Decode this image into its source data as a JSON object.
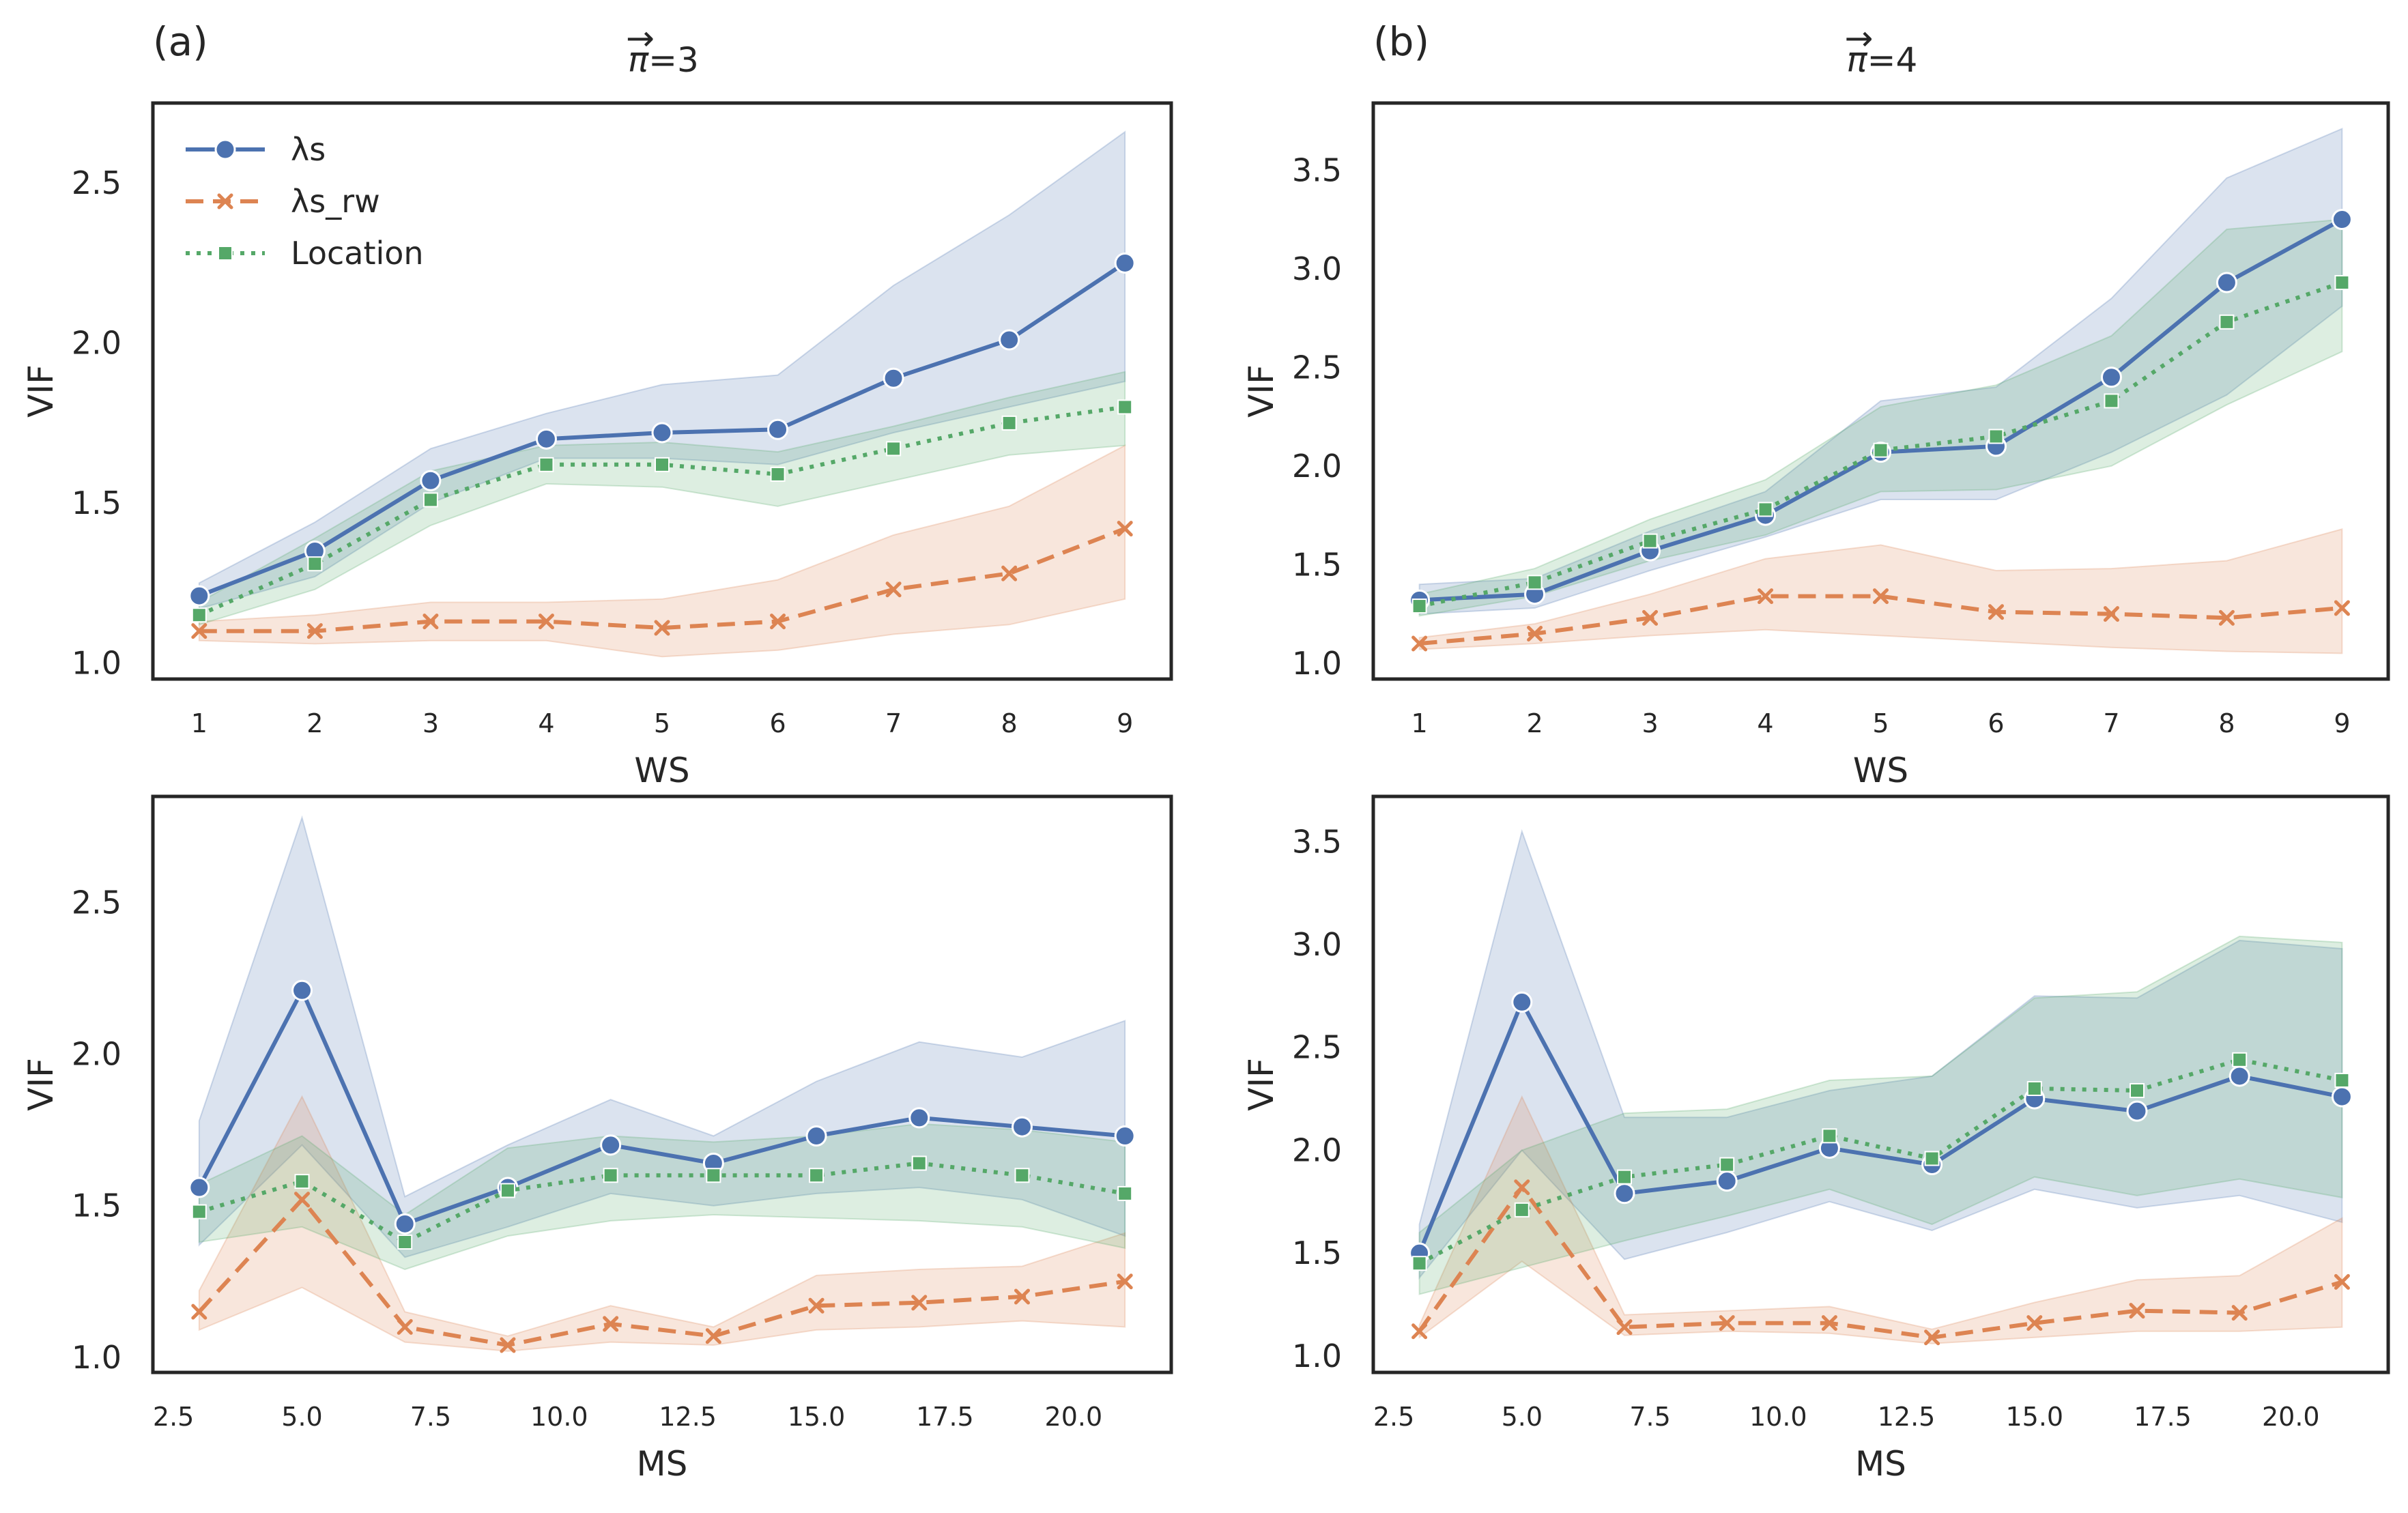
{
  "colors": {
    "ls": "#4c72b0",
    "ls_rw": "#dd8452",
    "loc": "#55a868",
    "frame": "#262626"
  },
  "legend": [
    "λs",
    "λs_rw",
    "Location"
  ],
  "chart_data": [
    {
      "type": "line",
      "panel_label": "(a)",
      "title_arrow": "→",
      "title_symbol": "π",
      "title_rest": "=3",
      "xlabel": "WS",
      "ylabel": "VIF",
      "x": [
        1,
        2,
        3,
        4,
        5,
        6,
        7,
        8,
        9
      ],
      "xticks": [
        "1",
        "2",
        "3",
        "4",
        "5",
        "6",
        "7",
        "8",
        "9"
      ],
      "xlim": [
        0.6,
        9.4
      ],
      "yticks": [
        "1.0",
        "1.5",
        "2.0",
        "2.5"
      ],
      "ylim": [
        0.95,
        2.75
      ],
      "series": [
        {
          "name": "λs",
          "values": [
            1.21,
            1.35,
            1.57,
            1.7,
            1.72,
            1.73,
            1.89,
            2.01,
            2.25
          ],
          "lower": [
            1.17,
            1.27,
            1.5,
            1.64,
            1.64,
            1.62,
            1.72,
            1.8,
            1.88
          ],
          "upper": [
            1.25,
            1.44,
            1.67,
            1.78,
            1.87,
            1.9,
            2.18,
            2.4,
            2.66
          ]
        },
        {
          "name": "λs_rw",
          "values": [
            1.1,
            1.1,
            1.13,
            1.13,
            1.11,
            1.13,
            1.23,
            1.28,
            1.42
          ],
          "lower": [
            1.07,
            1.06,
            1.07,
            1.07,
            1.02,
            1.04,
            1.09,
            1.12,
            1.2
          ],
          "upper": [
            1.13,
            1.15,
            1.19,
            1.19,
            1.2,
            1.26,
            1.4,
            1.49,
            1.68
          ]
        },
        {
          "name": "Location",
          "values": [
            1.15,
            1.31,
            1.51,
            1.62,
            1.62,
            1.59,
            1.67,
            1.75,
            1.8
          ],
          "lower": [
            1.12,
            1.23,
            1.43,
            1.56,
            1.55,
            1.49,
            1.57,
            1.65,
            1.68
          ],
          "upper": [
            1.19,
            1.39,
            1.6,
            1.68,
            1.69,
            1.66,
            1.74,
            1.83,
            1.91
          ]
        }
      ]
    },
    {
      "type": "line",
      "panel_label": "(b)",
      "title_arrow": "→",
      "title_symbol": "π",
      "title_rest": "=4",
      "xlabel": "WS",
      "ylabel": "VIF",
      "x": [
        1,
        2,
        3,
        4,
        5,
        6,
        7,
        8,
        9
      ],
      "xticks": [
        "1",
        "2",
        "3",
        "4",
        "5",
        "6",
        "7",
        "8",
        "9"
      ],
      "xlim": [
        0.6,
        9.4
      ],
      "yticks": [
        "1.0",
        "1.5",
        "2.0",
        "2.5",
        "3.0",
        "3.5"
      ],
      "ylim": [
        0.92,
        3.84
      ],
      "series": [
        {
          "name": "λs",
          "values": [
            1.32,
            1.35,
            1.57,
            1.75,
            2.07,
            2.1,
            2.45,
            2.93,
            3.25
          ],
          "lower": [
            1.25,
            1.28,
            1.47,
            1.64,
            1.83,
            1.83,
            2.07,
            2.36,
            2.81
          ],
          "upper": [
            1.4,
            1.43,
            1.67,
            1.87,
            2.33,
            2.4,
            2.85,
            3.46,
            3.71
          ]
        },
        {
          "name": "λs_rw",
          "values": [
            1.1,
            1.15,
            1.23,
            1.34,
            1.34,
            1.26,
            1.25,
            1.23,
            1.28
          ],
          "lower": [
            1.07,
            1.1,
            1.14,
            1.17,
            1.14,
            1.11,
            1.08,
            1.06,
            1.05
          ],
          "upper": [
            1.13,
            1.2,
            1.35,
            1.53,
            1.6,
            1.47,
            1.48,
            1.52,
            1.68
          ]
        },
        {
          "name": "Location",
          "values": [
            1.29,
            1.41,
            1.62,
            1.78,
            2.08,
            2.15,
            2.33,
            2.73,
            2.93
          ],
          "lower": [
            1.24,
            1.34,
            1.52,
            1.65,
            1.87,
            1.88,
            2.0,
            2.31,
            2.58
          ],
          "upper": [
            1.35,
            1.48,
            1.73,
            1.93,
            2.3,
            2.41,
            2.66,
            3.2,
            3.25
          ]
        }
      ]
    },
    {
      "type": "line",
      "panel_label": "",
      "xlabel": "MS",
      "ylabel": "VIF",
      "x": [
        3,
        5,
        7,
        9,
        11,
        13,
        15,
        17,
        19,
        21
      ],
      "xticks": [
        "2.5",
        "5.0",
        "7.5",
        "10.0",
        "12.5",
        "15.0",
        "17.5",
        "20.0"
      ],
      "xtick_values": [
        2.5,
        5.0,
        7.5,
        10.0,
        12.5,
        15.0,
        17.5,
        20.0
      ],
      "xlim": [
        2.1,
        21.9
      ],
      "yticks": [
        "1.0",
        "1.5",
        "2.0",
        "2.5"
      ],
      "ylim": [
        0.95,
        2.85
      ],
      "series": [
        {
          "name": "λs",
          "values": [
            1.56,
            2.21,
            1.44,
            1.56,
            1.7,
            1.64,
            1.73,
            1.79,
            1.76,
            1.73
          ],
          "lower": [
            1.37,
            1.7,
            1.33,
            1.43,
            1.54,
            1.5,
            1.54,
            1.56,
            1.52,
            1.4
          ],
          "upper": [
            1.78,
            2.78,
            1.53,
            1.7,
            1.85,
            1.73,
            1.91,
            2.04,
            1.99,
            2.11
          ]
        },
        {
          "name": "λs_rw",
          "values": [
            1.15,
            1.52,
            1.1,
            1.04,
            1.11,
            1.07,
            1.17,
            1.18,
            1.2,
            1.25
          ],
          "lower": [
            1.09,
            1.23,
            1.05,
            1.02,
            1.05,
            1.04,
            1.09,
            1.1,
            1.12,
            1.1
          ],
          "upper": [
            1.22,
            1.86,
            1.15,
            1.07,
            1.17,
            1.1,
            1.27,
            1.29,
            1.3,
            1.41
          ]
        },
        {
          "name": "Location",
          "values": [
            1.48,
            1.58,
            1.38,
            1.55,
            1.6,
            1.6,
            1.6,
            1.64,
            1.6,
            1.54
          ],
          "lower": [
            1.38,
            1.43,
            1.29,
            1.4,
            1.45,
            1.47,
            1.46,
            1.45,
            1.43,
            1.36
          ],
          "upper": [
            1.57,
            1.73,
            1.47,
            1.69,
            1.73,
            1.71,
            1.73,
            1.77,
            1.75,
            1.71
          ]
        }
      ]
    },
    {
      "type": "line",
      "panel_label": "",
      "xlabel": "MS",
      "ylabel": "VIF",
      "x": [
        3,
        5,
        7,
        9,
        11,
        13,
        15,
        17,
        19,
        21
      ],
      "xticks": [
        "2.5",
        "5.0",
        "7.5",
        "10.0",
        "12.5",
        "15.0",
        "17.5",
        "20.0"
      ],
      "xtick_values": [
        2.5,
        5.0,
        7.5,
        10.0,
        12.5,
        15.0,
        17.5,
        20.0
      ],
      "xlim": [
        2.1,
        21.9
      ],
      "yticks": [
        "1.0",
        "1.5",
        "2.0",
        "2.5",
        "3.0",
        "3.5"
      ],
      "ylim": [
        0.92,
        3.72
      ],
      "series": [
        {
          "name": "λs",
          "values": [
            1.5,
            2.72,
            1.79,
            1.85,
            2.01,
            1.93,
            2.25,
            2.19,
            2.36,
            2.26
          ],
          "lower": [
            1.38,
            2.0,
            1.47,
            1.6,
            1.75,
            1.61,
            1.81,
            1.72,
            1.78,
            1.65
          ],
          "upper": [
            1.64,
            3.55,
            2.16,
            2.16,
            2.29,
            2.36,
            2.75,
            2.74,
            3.02,
            2.98
          ]
        },
        {
          "name": "λs_rw",
          "values": [
            1.12,
            1.82,
            1.14,
            1.16,
            1.16,
            1.09,
            1.16,
            1.22,
            1.21,
            1.36
          ],
          "lower": [
            1.09,
            1.46,
            1.1,
            1.12,
            1.11,
            1.06,
            1.09,
            1.12,
            1.12,
            1.14
          ],
          "upper": [
            1.15,
            2.26,
            1.2,
            1.22,
            1.24,
            1.13,
            1.26,
            1.37,
            1.39,
            1.67
          ]
        },
        {
          "name": "Location",
          "values": [
            1.45,
            1.71,
            1.87,
            1.93,
            2.07,
            1.96,
            2.3,
            2.29,
            2.44,
            2.34
          ],
          "lower": [
            1.3,
            1.43,
            1.56,
            1.68,
            1.81,
            1.64,
            1.87,
            1.78,
            1.86,
            1.77
          ],
          "upper": [
            1.6,
            2.0,
            2.18,
            2.2,
            2.34,
            2.36,
            2.74,
            2.77,
            3.04,
            3.01
          ]
        }
      ]
    }
  ]
}
